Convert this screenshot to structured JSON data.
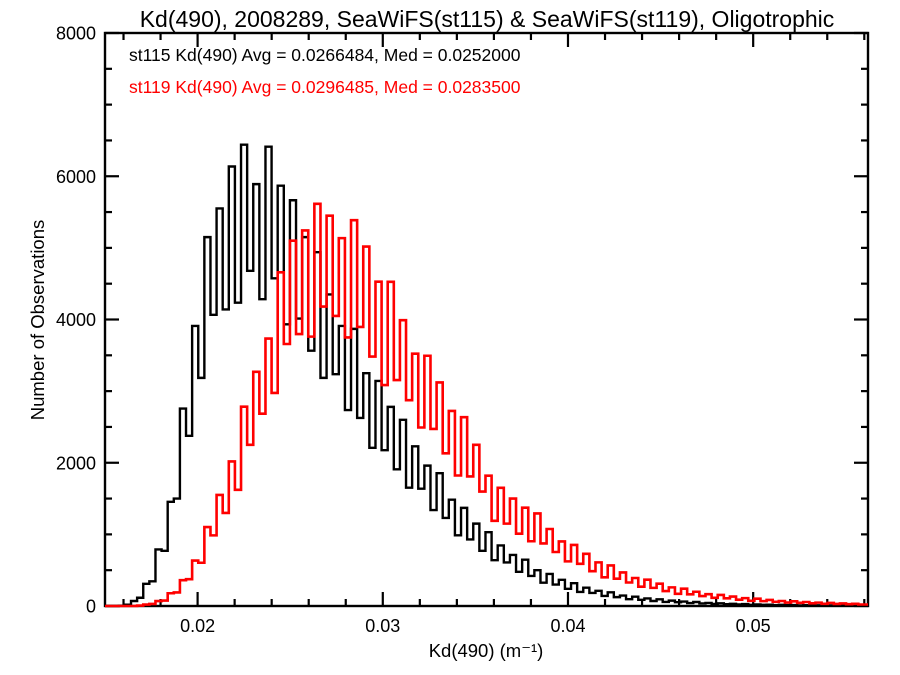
{
  "title": "Kd(490), 2008289, SeaWiFS(st115) & SeaWiFS(st119), Oligotrophic",
  "dataset": {
    "product": "Kd(490)",
    "date": "2008289",
    "sensors": [
      "SeaWiFS(st115)",
      "SeaWiFS(st119)"
    ],
    "water_type": "Oligotrophic"
  },
  "legend": {
    "st115": "st115 Kd(490) Avg = 0.0266484, Med = 0.0252000",
    "st119": "st119 Kd(490) Avg = 0.0296485, Med = 0.0283500"
  },
  "stats": {
    "st115": {
      "avg": "0.0266484",
      "med": "0.0252000"
    },
    "st119": {
      "avg": "0.0296485",
      "med": "0.0283500"
    }
  },
  "chart_data": {
    "type": "histogram-step",
    "title": "Kd(490), 2008289, SeaWiFS(st115) & SeaWiFS(st119), Oligotrophic",
    "xlabel": "Kd(490) (m⁻¹)",
    "ylabel": "Number of Observations",
    "xlim": [
      0.015,
      0.0562
    ],
    "ylim": [
      0,
      8000
    ],
    "grid": false,
    "legend_position": "top-left-inside",
    "x_ticks": {
      "major": [
        0.02,
        0.03,
        0.04,
        0.05
      ],
      "labels": [
        "0.02",
        "0.03",
        "0.04",
        "0.05"
      ],
      "minor_step": 0.002
    },
    "y_ticks": {
      "major": [
        0,
        2000,
        4000,
        6000,
        8000
      ],
      "labels": [
        "0",
        "2000",
        "4000",
        "6000",
        "8000"
      ],
      "minor_step": 500
    },
    "bins": {
      "start": 0.015085,
      "width": 0.00033
    },
    "series": [
      {
        "name": "st115",
        "color": "#000000",
        "counts": [
          0,
          0,
          5,
          18,
          70,
          115,
          310,
          345,
          790,
          770,
          1455,
          1500,
          2756,
          2376,
          3910,
          3185,
          5150,
          4066,
          5550,
          4140,
          6136,
          4235,
          6440,
          4680,
          5890,
          4284,
          6413,
          4575,
          5868,
          3933,
          5665,
          4013,
          5150,
          3564,
          4940,
          3185,
          4350,
          3237,
          3910,
          2736,
          3869,
          2625,
          3250,
          2208,
          3142,
          2175,
          2780,
          1908,
          2600,
          1652,
          2230,
          1638,
          1960,
          1339,
          1855,
          1230,
          1484,
          987,
          1370,
          930,
          1150,
          770,
          1030,
          640,
          845,
          608,
          713,
          477,
          647,
          420,
          500,
          326,
          447,
          299,
          365,
          240,
          318,
          196,
          256,
          183,
          212,
          141,
          191,
          124,
          146,
          95,
          130,
          87,
          106,
          70,
          93,
          57,
          75,
          53,
          62,
          41,
          56,
          36,
          43,
          28,
          38,
          26,
          31,
          21,
          27,
          17,
          22,
          16,
          19,
          12,
          17,
          11,
          13,
          8,
          11,
          8,
          10,
          6,
          8,
          6,
          7,
          5,
          6,
          4
        ]
      },
      {
        "name": "st119",
        "color": "#ff0000",
        "counts": [
          0,
          0,
          0,
          0,
          0,
          6,
          20,
          29,
          69,
          76,
          178,
          190,
          360,
          375,
          634,
          604,
          1102,
          986,
          1550,
          1299,
          2019,
          1622,
          2783,
          2250,
          3270,
          2685,
          3734,
          2975,
          4659,
          3658,
          5100,
          3796,
          5243,
          3761,
          5615,
          4180,
          5450,
          4050,
          5136,
          3749,
          5387,
          3896,
          5018,
          3482,
          4528,
          3084,
          4526,
          3154,
          3990,
          2873,
          3523,
          2492,
          3494,
          2472,
          3121,
          2132,
          2724,
          1822,
          2636,
          1809,
          2250,
          1598,
          1820,
          1190,
          1650,
          1150,
          1500,
          1010,
          1372,
          904,
          1292,
          874,
          1075,
          754,
          902,
          623,
          853,
          589,
          728,
          486,
          609,
          400,
          567,
          382,
          469,
          328,
          391,
          269,
          367,
          253,
          312,
          208,
          260,
          170,
          242,
          163,
          199,
          139,
          165,
          114,
          155,
          107,
          132,
          88,
          110,
          72,
          102,
          68,
          84,
          59,
          70,
          48,
          66,
          45,
          56,
          37,
          47,
          30,
          43,
          29,
          36,
          25,
          30,
          21
        ]
      }
    ]
  }
}
